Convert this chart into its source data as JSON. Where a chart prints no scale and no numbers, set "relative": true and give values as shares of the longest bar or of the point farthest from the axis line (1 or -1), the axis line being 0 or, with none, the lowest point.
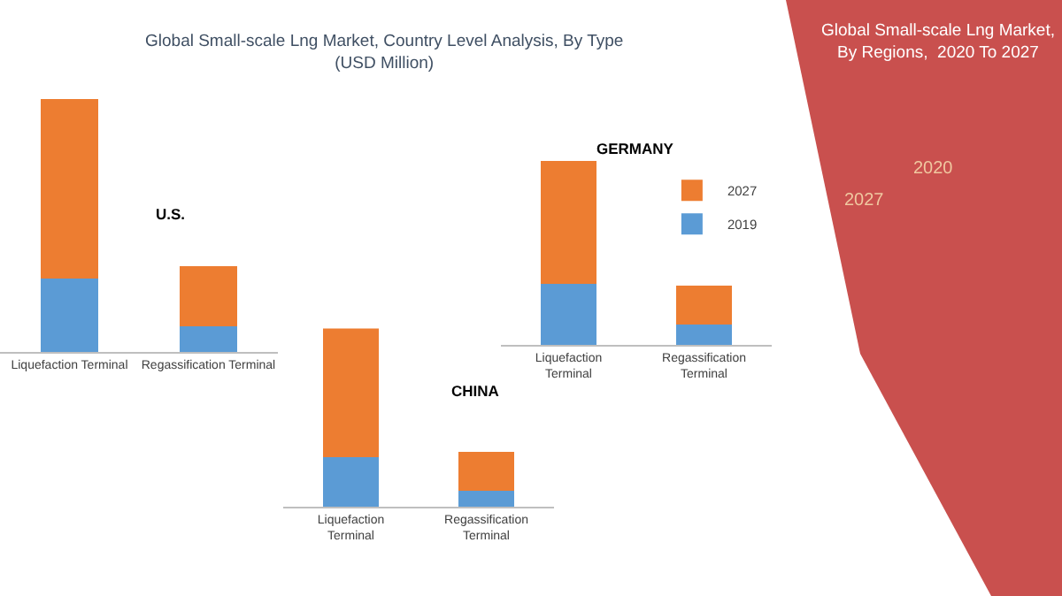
{
  "chart_data": [
    {
      "type": "bar",
      "title": "U.S.",
      "annotations": [
        "Global Small-scale Lng Market, Country Level Analysis, By Type\n(USD Million)"
      ],
      "categories": [
        "Liquefaction Terminal",
        "Regassification Terminal"
      ],
      "stacked": true,
      "relative": true,
      "legend": false,
      "series": [
        {
          "color": "#5b9bd5",
          "values": [
            0.29,
            0.1
          ]
        },
        {
          "color": "#ed7d31",
          "values": [
            0.71,
            0.24
          ]
        }
      ]
    },
    {
      "type": "bar",
      "title": "GERMANY",
      "categories": [
        "Liquefaction Terminal",
        "Regassification Terminal"
      ],
      "stacked": true,
      "relative": true,
      "legend": "top right",
      "series": [
        {
          "name": "2019",
          "color": "#5b9bd5",
          "values": [
            0.33,
            0.11
          ]
        },
        {
          "name": "2027",
          "color": "#ed7d31",
          "values": [
            0.67,
            0.21
          ]
        }
      ]
    },
    {
      "type": "bar",
      "title": "CHINA",
      "categories": [
        "Liquefaction Terminal",
        "Regassification Terminal"
      ],
      "stacked": true,
      "relative": true,
      "legend": false,
      "series": [
        {
          "color": "#5b9bd5",
          "values": [
            0.28,
            0.09
          ]
        },
        {
          "color": "#ed7d31",
          "values": [
            0.72,
            0.22
          ]
        }
      ]
    },
    {
      "type": "other",
      "title": "Global Small-scale Lng Market,\nBy Regions,  2020 To 2027",
      "annotations": [
        "2027",
        "2020"
      ]
    }
  ]
}
